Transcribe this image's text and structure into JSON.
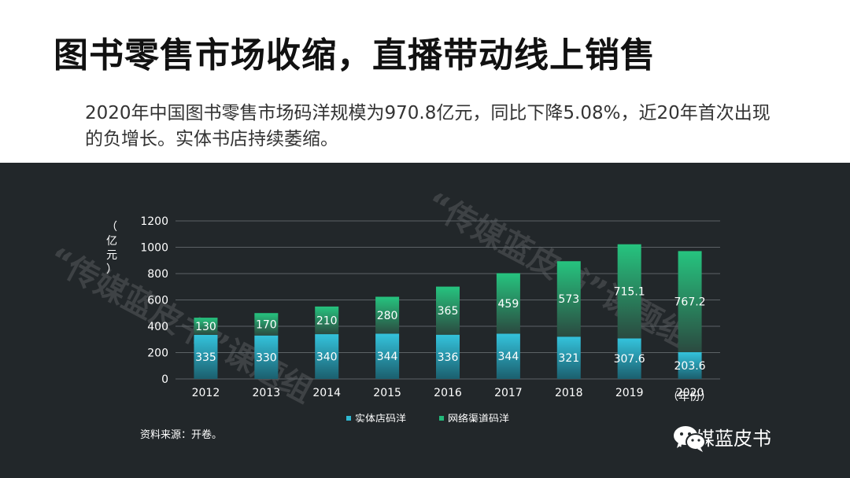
{
  "slide": {
    "title": "图书零售市场收缩，直播带动线上销售",
    "summary": "2020年中国图书零售市场码洋规模为970.8亿元，同比下降5.08%，近20年首次出现的负增长。实体书店持续萎缩。"
  },
  "source": "资料来源：开卷。",
  "brand": {
    "name": "传媒蓝皮书",
    "icon": "wechat-icon"
  },
  "watermark": [
    "“传媒蓝皮书”课题组",
    "“传媒蓝皮书”课题组"
  ],
  "colors": {
    "panel_bg": "#22272a",
    "physical": "#2fb8d2",
    "online": "#22b879",
    "text": "#ffffff"
  },
  "chart_data": {
    "type": "bar",
    "stacked": true,
    "categories": [
      "2012",
      "2013",
      "2014",
      "2015",
      "2016",
      "2017",
      "2018",
      "2019",
      "2020"
    ],
    "series": [
      {
        "name": "实体店码洋",
        "values": [
          335,
          330,
          340,
          344,
          336,
          344,
          321,
          307.6,
          203.6
        ],
        "labels": [
          "335",
          "330",
          "340",
          "344",
          "336",
          "344",
          "321",
          "307.6",
          "203.6"
        ]
      },
      {
        "name": "网络渠道码洋",
        "values": [
          130,
          170,
          210,
          280,
          365,
          459,
          573,
          715.1,
          767.2
        ],
        "labels": [
          "130",
          "170",
          "210",
          "280",
          "365",
          "459",
          "573",
          "715.1",
          "767.2"
        ]
      }
    ],
    "ylabel": "（亿元）",
    "xlabel": "（年份）",
    "ylim": [
      0,
      1200
    ],
    "yticks": [
      0,
      200,
      400,
      600,
      800,
      1000,
      1200
    ],
    "grid": true,
    "legend": "bottom"
  }
}
